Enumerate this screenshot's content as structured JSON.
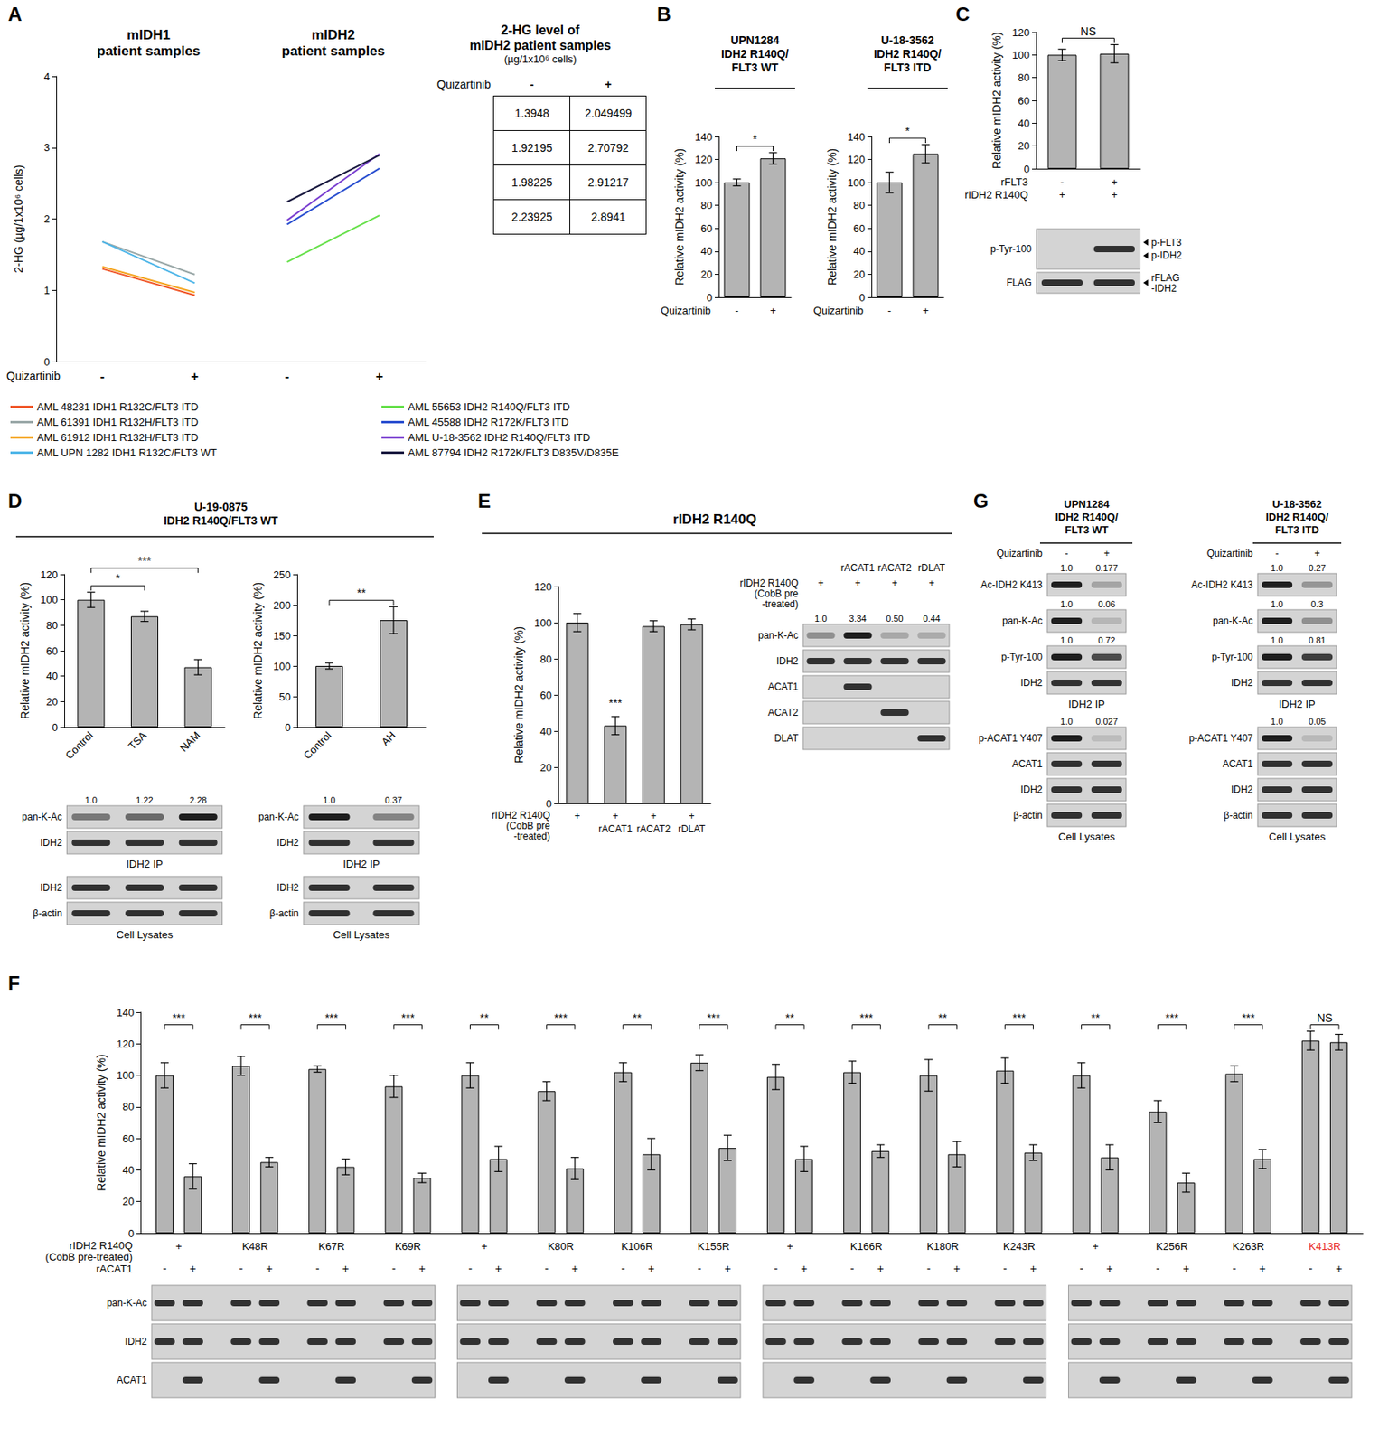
{
  "chart_data": [
    {
      "panel": "A",
      "type": "line",
      "group_titles": [
        "mIDH1\npatient samples",
        "mIDH2\npatient samples"
      ],
      "categories": [
        "-",
        "+",
        "-",
        "+"
      ],
      "x_row_label": "Quizartinib",
      "ylabel": "2-HG (µg/1x10⁶ cells)",
      "ylim": [
        0,
        4
      ],
      "yticks": [
        0,
        1,
        2,
        3,
        4
      ],
      "legend": "bottom",
      "series": [
        {
          "name": "AML 48231 IDH1 R132C/FLT3 ITD",
          "color": "#f0582a",
          "values": [
            1.3,
            0.93,
            null,
            null
          ]
        },
        {
          "name": "AML 61391 IDH1 R132H/FLT3 ITD",
          "color": "#9aa8a8",
          "values": [
            1.68,
            1.22,
            null,
            null
          ]
        },
        {
          "name": "AML 61912 IDH1 R132H/FLT3 ITD",
          "color": "#f5a623",
          "values": [
            1.33,
            0.97,
            null,
            null
          ]
        },
        {
          "name": "AML UPN 1282 IDH1 R132C/FLT3 WT",
          "color": "#4fb6e8",
          "values": [
            1.68,
            1.1,
            null,
            null
          ]
        },
        {
          "name": "AML 55653 IDH2 R140Q/FLT3 ITD",
          "color": "#66e04a",
          "values": [
            null,
            null,
            1.3948,
            2.049499
          ]
        },
        {
          "name": "AML 45588 IDH2 R172K/FLT3 ITD",
          "color": "#2a4fd0",
          "values": [
            null,
            null,
            1.92195,
            2.70792
          ]
        },
        {
          "name": "AML U-18-3562 IDH2 R140Q/FLT3 ITD",
          "color": "#7a3fd0",
          "values": [
            null,
            null,
            1.98225,
            2.91217
          ]
        },
        {
          "name": "AML 87794 IDH2 R172K/FLT3 D835V/D835E",
          "color": "#1a1a40",
          "values": [
            null,
            null,
            2.23925,
            2.8941
          ]
        }
      ],
      "table": {
        "title": "2-HG level of\nmIDH2 patient samples",
        "unit": "(µg/1x10⁶ cells)",
        "row_label": "Quizartinib",
        "columns": [
          "-",
          "+"
        ],
        "rows": [
          [
            1.3948,
            2.049499
          ],
          [
            1.92195,
            2.70792
          ],
          [
            1.98225,
            2.91217
          ],
          [
            2.23925,
            2.8941
          ]
        ]
      }
    },
    {
      "panel": "B",
      "header": "UPN1284\nIDH2 R140Q/\nFLT3 WT",
      "type": "bar",
      "categories": [
        "-",
        "+"
      ],
      "x_row_label": "Quizartinib",
      "values": [
        100,
        121
      ],
      "errors": [
        3,
        5
      ],
      "significance": [
        {
          "pair": [
            0,
            1
          ],
          "label": "*"
        }
      ],
      "ylabel": "Relative mIDH2 activity (%)",
      "ylim": [
        0,
        140
      ],
      "yticks": [
        0,
        20,
        40,
        60,
        80,
        100,
        120,
        140
      ],
      "color": "#b4b4b4"
    },
    {
      "header": "U-18-3562\nIDH2 R140Q/\nFLT3 ITD",
      "type": "bar",
      "categories": [
        "-",
        "+"
      ],
      "x_row_label": "Quizartinib",
      "values": [
        100,
        125
      ],
      "errors": [
        9,
        8
      ],
      "significance": [
        {
          "pair": [
            0,
            1
          ],
          "label": "*"
        }
      ],
      "ylabel": "Relative mIDH2 activity (%)",
      "ylim": [
        0,
        140
      ],
      "yticks": [
        0,
        20,
        40,
        60,
        80,
        100,
        120,
        140
      ],
      "color": "#b4b4b4"
    },
    {
      "panel": "C",
      "type": "bar",
      "rows": [
        {
          "label": "rFLT3",
          "values": [
            "-",
            "+"
          ]
        },
        {
          "label": "rIDH2 R140Q",
          "values": [
            "+",
            "+"
          ]
        }
      ],
      "values": [
        100,
        101
      ],
      "errors": [
        5,
        8
      ],
      "significance": [
        {
          "pair": [
            0,
            1
          ],
          "label": "NS"
        }
      ],
      "ylabel": "Relative mIDH2 activity (%)",
      "ylim": [
        0,
        120
      ],
      "yticks": [
        0,
        20,
        40,
        60,
        80,
        100,
        120
      ],
      "color": "#b4b4b4"
    },
    {
      "panel": "D",
      "header": "U-19-0875\nIDH2 R140Q/FLT3 WT",
      "type": "bar",
      "categories": [
        "Control",
        "TSA",
        "NAM"
      ],
      "values": [
        100,
        87,
        47
      ],
      "errors": [
        6,
        4,
        6
      ],
      "significance": [
        {
          "pair": [
            0,
            1
          ],
          "label": "*"
        },
        {
          "pair": [
            0,
            2
          ],
          "label": "***"
        }
      ],
      "ylabel": "Relative mIDH2 activity (%)",
      "ylim": [
        0,
        120
      ],
      "yticks": [
        0,
        20,
        40,
        60,
        80,
        100,
        120
      ],
      "color": "#b4b4b4"
    },
    {
      "type": "bar",
      "categories": [
        "Control",
        "AH"
      ],
      "values": [
        100,
        175
      ],
      "errors": [
        5,
        22
      ],
      "significance": [
        {
          "pair": [
            0,
            1
          ],
          "label": "**"
        }
      ],
      "ylabel": "Relative mIDH2 activity (%)",
      "ylim": [
        0,
        250
      ],
      "yticks": [
        0,
        50,
        100,
        150,
        200,
        250
      ],
      "color": "#b4b4b4"
    },
    {
      "panel": "E",
      "header": "rIDH2 R140Q",
      "type": "bar",
      "rows": [
        {
          "label": "rIDH2 R140Q\n(CobB pre\n-treated)",
          "values": [
            "+",
            "+",
            "+",
            "+"
          ]
        },
        {
          "values": [
            null,
            "rACAT1",
            "rACAT2",
            "rDLAT"
          ]
        }
      ],
      "values": [
        100,
        43,
        98,
        99
      ],
      "errors": [
        5,
        5,
        3,
        3
      ],
      "significance": [
        {
          "pair": [
            1,
            1
          ],
          "label": "***"
        }
      ],
      "ylabel": "Relative mIDH2 activity (%)",
      "ylim": [
        0,
        120
      ],
      "yticks": [
        0,
        20,
        40,
        60,
        80,
        100,
        120
      ],
      "color": "#b4b4b4"
    },
    {
      "panel": "F",
      "type": "bar",
      "categories": [
        "+",
        "K48R",
        "K67R",
        "K69R",
        "+",
        "K80R",
        "K106R",
        "K155R",
        "+",
        "K166R",
        "K180R",
        "K243R",
        "+",
        "K256R",
        "K263R",
        "K413R"
      ],
      "category_label_colors": [
        "#000000",
        "#000000",
        "#000000",
        "#000000",
        "#000000",
        "#000000",
        "#000000",
        "#000000",
        "#000000",
        "#000000",
        "#000000",
        "#000000",
        "#000000",
        "#000000",
        "#000000",
        "#e8251e"
      ],
      "row_labels": [
        "rIDH2 R140Q\n(CobB pre-treated)",
        "rACAT1"
      ],
      "series": [
        {
          "name": "-",
          "values": [
            100,
            106,
            104,
            93,
            100,
            90,
            102,
            108,
            99,
            102,
            100,
            103,
            100,
            77,
            101,
            122
          ],
          "errors": [
            8,
            6,
            2,
            7,
            8,
            6,
            6,
            5,
            8,
            7,
            10,
            8,
            8,
            7,
            5,
            6
          ]
        },
        {
          "name": "+",
          "values": [
            36,
            45,
            42,
            35,
            47,
            41,
            50,
            54,
            47,
            52,
            50,
            51,
            48,
            32,
            47,
            121
          ],
          "errors": [
            8,
            3,
            5,
            3,
            8,
            7,
            10,
            8,
            8,
            4,
            8,
            5,
            8,
            6,
            6,
            5
          ]
        }
      ],
      "significance": [
        "***",
        "***",
        "***",
        "***",
        "**",
        "***",
        "**",
        "***",
        "**",
        "***",
        "**",
        "***",
        "**",
        "***",
        "***",
        "NS"
      ],
      "ylabel": "Relative mIDH2 activity (%)",
      "ylim": [
        0,
        140
      ],
      "yticks": [
        0,
        20,
        40,
        60,
        80,
        100,
        120,
        140
      ],
      "color": "#b4b4b4"
    }
  ],
  "blots": [
    {
      "rows": [
        {
          "label": "p-Tyr-100",
          "bands": [
            0,
            1
          ],
          "right_labels": [
            "p-FLT3",
            "p-IDH2"
          ]
        },
        {
          "label": "FLAG",
          "right_labels": [
            "rFLAG\n-IDH2"
          ]
        }
      ]
    },
    {
      "rows": [
        {
          "label": "pan-K-Ac",
          "quant": [
            "1.0",
            "1.22",
            "2.28"
          ]
        },
        {
          "label": "IDH2"
        },
        {
          "caption": "IDH2  IP"
        },
        {
          "label": "IDH2"
        },
        {
          "label": "β-actin"
        },
        {
          "caption": "Cell Lysates"
        }
      ]
    },
    {
      "rows": [
        {
          "label": "pan-K-Ac",
          "quant": [
            "1.0",
            "0.37"
          ]
        },
        {
          "label": "IDH2"
        },
        {
          "caption": "IDH2 IP"
        },
        {
          "label": "IDH2"
        },
        {
          "label": "β-actin"
        },
        {
          "caption": "Cell Lysates"
        }
      ]
    },
    {
      "header_rows": [
        {
          "values": [
            null,
            "rACAT1",
            "rACAT2",
            "rDLAT"
          ]
        },
        {
          "label": "rIDH2 R140Q\n(CobB pre\n-treated)",
          "values": [
            "+",
            "+",
            "+",
            "+"
          ]
        }
      ],
      "rows": [
        {
          "label": "pan-K-Ac",
          "quant": [
            "1.0",
            "3.34",
            "0.50",
            "0.44"
          ]
        },
        {
          "label": "IDH2"
        },
        {
          "label": "ACAT1",
          "bands": [
            0,
            1,
            0,
            0
          ]
        },
        {
          "label": "ACAT2",
          "bands": [
            0,
            0,
            1,
            0
          ]
        },
        {
          "label": "DLAT",
          "bands": [
            0,
            0,
            0,
            1
          ]
        }
      ]
    },
    {
      "panel": "G",
      "header": "UPN1284\nIDH2 R140Q/\nFLT3 WT",
      "header_rows": [
        {
          "label": "Quizartinib",
          "values": [
            "-",
            "+"
          ]
        }
      ],
      "rows": [
        {
          "label": "Ac-IDH2 K413",
          "quant": [
            "1.0",
            "0.177"
          ]
        },
        {
          "label": "pan-K-Ac",
          "quant": [
            "1.0",
            "0.06"
          ]
        },
        {
          "label": "p-Tyr-100",
          "quant": [
            "1.0",
            "0.72"
          ]
        },
        {
          "label": "IDH2"
        },
        {
          "caption": "IDH2 IP"
        },
        {
          "label": "p-ACAT1 Y407",
          "quant": [
            "1.0",
            "0.027"
          ]
        },
        {
          "label": "ACAT1"
        },
        {
          "label": "IDH2"
        },
        {
          "label": "β-actin"
        },
        {
          "caption": "Cell Lysates"
        }
      ]
    },
    {
      "header": "U-18-3562\nIDH2 R140Q/\nFLT3 ITD",
      "header_rows": [
        {
          "label": "Quizartinib",
          "values": [
            "-",
            "+"
          ]
        }
      ],
      "rows": [
        {
          "label": "Ac-IDH2 K413",
          "quant": [
            "1.0",
            "0.27"
          ]
        },
        {
          "label": "pan-K-Ac",
          "quant": [
            "1.0",
            "0.3"
          ]
        },
        {
          "label": "p-Tyr-100",
          "quant": [
            "1.0",
            "0.81"
          ]
        },
        {
          "label": "IDH2"
        },
        {
          "caption": "IDH2 IP"
        },
        {
          "label": "p-ACAT1 Y407",
          "quant": [
            "1.0",
            "0.05"
          ]
        },
        {
          "label": "ACAT1"
        },
        {
          "label": "IDH2"
        },
        {
          "label": "β-actin"
        },
        {
          "caption": "Cell Lysates"
        }
      ]
    },
    {
      "rows": [
        {
          "label": "pan-K-Ac"
        },
        {
          "label": "IDH2"
        },
        {
          "label": "ACAT1",
          "bands": [
            0,
            1,
            0,
            1,
            0,
            1,
            0,
            1,
            0,
            1,
            0,
            1,
            0,
            1,
            0,
            1,
            0,
            1,
            0,
            1,
            0,
            1,
            0,
            1,
            0,
            1,
            0,
            1,
            0,
            1,
            0,
            1
          ]
        }
      ]
    }
  ]
}
